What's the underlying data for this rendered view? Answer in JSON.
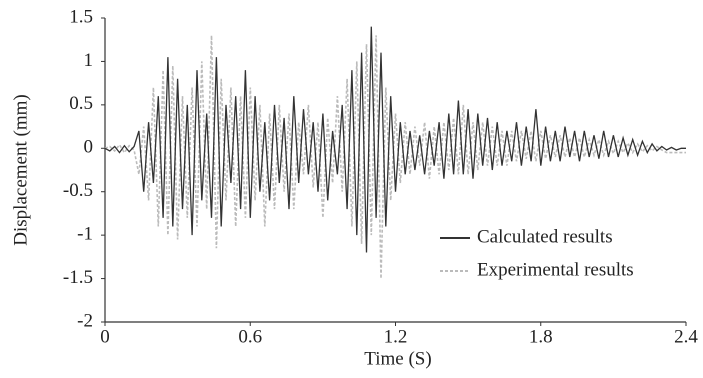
{
  "chart_data": {
    "type": "line",
    "xlabel": "Time (S)",
    "ylabel": "Displacement (mm)",
    "x": [
      0,
      0.02,
      0.04,
      0.06,
      0.08,
      0.1,
      0.12,
      0.14,
      0.16,
      0.18,
      0.2,
      0.22,
      0.24,
      0.26,
      0.28,
      0.3,
      0.32,
      0.34,
      0.36,
      0.38,
      0.4,
      0.42,
      0.44,
      0.46,
      0.48,
      0.5,
      0.52,
      0.54,
      0.56,
      0.58,
      0.6,
      0.62,
      0.64,
      0.66,
      0.68,
      0.7,
      0.72,
      0.74,
      0.76,
      0.78,
      0.8,
      0.82,
      0.84,
      0.86,
      0.88,
      0.9,
      0.92,
      0.94,
      0.96,
      0.98,
      1,
      1.02,
      1.04,
      1.06,
      1.08,
      1.1,
      1.12,
      1.14,
      1.16,
      1.18,
      1.2,
      1.22,
      1.24,
      1.26,
      1.28,
      1.3,
      1.32,
      1.34,
      1.36,
      1.38,
      1.4,
      1.42,
      1.44,
      1.46,
      1.48,
      1.5,
      1.52,
      1.54,
      1.56,
      1.58,
      1.6,
      1.62,
      1.64,
      1.66,
      1.68,
      1.7,
      1.72,
      1.74,
      1.76,
      1.78,
      1.8,
      1.82,
      1.84,
      1.86,
      1.88,
      1.9,
      1.92,
      1.94,
      1.96,
      1.98,
      2,
      2.02,
      2.04,
      2.06,
      2.08,
      2.1,
      2.12,
      2.14,
      2.16,
      2.18,
      2.2,
      2.22,
      2.24,
      2.26,
      2.28,
      2.3,
      2.32,
      2.34,
      2.36,
      2.38,
      2.4
    ],
    "series": [
      {
        "name": "Calculated results",
        "color": "#333333",
        "dashed": false,
        "values": [
          0,
          -0.03,
          0.02,
          -0.05,
          0.03,
          -0.04,
          0.02,
          0.2,
          -0.5,
          0.3,
          -0.4,
          0.6,
          -0.8,
          1.05,
          -0.9,
          0.8,
          -0.7,
          0.5,
          -1.0,
          0.9,
          -0.6,
          0.4,
          -0.8,
          1.05,
          -0.9,
          0.5,
          -0.4,
          0.6,
          -0.7,
          0.9,
          -0.8,
          0.6,
          -0.5,
          0.3,
          -0.6,
          0.5,
          -0.4,
          0.35,
          -0.7,
          0.6,
          -0.4,
          0.45,
          -0.3,
          0.3,
          -0.5,
          0.4,
          -0.6,
          0.2,
          -0.3,
          0.5,
          -0.7,
          0.9,
          -1.0,
          1.1,
          -1.2,
          1.4,
          -0.8,
          1.1,
          -0.9,
          0.6,
          -0.5,
          0.3,
          -0.3,
          0.2,
          -0.25,
          0.15,
          -0.3,
          0.2,
          -0.2,
          0.3,
          -0.35,
          0.4,
          -0.3,
          0.55,
          -0.3,
          0.45,
          -0.35,
          0.4,
          -0.2,
          0.35,
          -0.25,
          0.3,
          -0.2,
          0.2,
          -0.15,
          0.3,
          -0.2,
          0.25,
          -0.15,
          0.45,
          -0.2,
          0.25,
          -0.15,
          0.2,
          -0.15,
          0.25,
          -0.1,
          0.2,
          -0.15,
          0.2,
          -0.1,
          0.15,
          -0.12,
          0.2,
          -0.1,
          0.15,
          -0.1,
          0.12,
          -0.08,
          0.1,
          -0.08,
          0.08,
          -0.05,
          0.05,
          -0.03,
          0.02,
          -0.02,
          0.01,
          -0.02,
          0,
          0
        ]
      },
      {
        "name": "Experimental results",
        "color": "#bbbbbb",
        "dashed": true,
        "values": [
          0,
          0.02,
          -0.03,
          0.04,
          -0.05,
          0.03,
          -0.02,
          -0.3,
          0.25,
          -0.6,
          0.7,
          -0.9,
          0.9,
          -1.0,
          0.95,
          -1.05,
          0.6,
          -0.8,
          0.7,
          -0.9,
          1.0,
          -0.7,
          1.3,
          -1.15,
          0.8,
          -0.6,
          0.7,
          -0.9,
          0.6,
          -0.8,
          0.7,
          -0.6,
          0.5,
          -0.9,
          0.4,
          -0.7,
          0.5,
          -0.5,
          0.4,
          -0.7,
          0.3,
          -0.3,
          0.5,
          -0.45,
          0.3,
          -0.8,
          0.35,
          -0.4,
          0.6,
          -0.5,
          0.8,
          -0.9,
          1.0,
          -1.1,
          1.2,
          -1.0,
          1.3,
          -1.5,
          0.7,
          -0.6,
          0.4,
          -0.4,
          0.3,
          -0.3,
          0.25,
          -0.2,
          0.3,
          -0.35,
          0.25,
          -0.3,
          0.3,
          -0.25,
          0.35,
          -0.3,
          0.5,
          -0.3,
          0.3,
          -0.25,
          0.3,
          -0.2,
          0.25,
          -0.2,
          0.2,
          -0.2,
          0.2,
          -0.15,
          0.2,
          -0.12,
          0.2,
          -0.15,
          0.2,
          -0.12,
          0.15,
          -0.1,
          0.15,
          -0.1,
          0.12,
          -0.1,
          0.12,
          -0.1,
          0.1,
          -0.08,
          0.1,
          -0.08,
          0.08,
          -0.06,
          0.08,
          -0.05,
          0.06,
          -0.05,
          0.05,
          -0.04,
          0.03,
          -0.03,
          0.02,
          -0.02,
          -0.05,
          -0.05,
          -0.05,
          -0.05,
          -0.05
        ]
      }
    ],
    "xlim": [
      0,
      2.4
    ],
    "xticks": [
      0,
      0.6,
      1.2,
      1.8,
      2.4
    ],
    "ylim": [
      -2,
      1.5
    ],
    "yticks": [
      1.5,
      1,
      0.5,
      0,
      -0.5,
      -1,
      -1.5,
      -2
    ],
    "grid": false,
    "legend": "lower right"
  }
}
